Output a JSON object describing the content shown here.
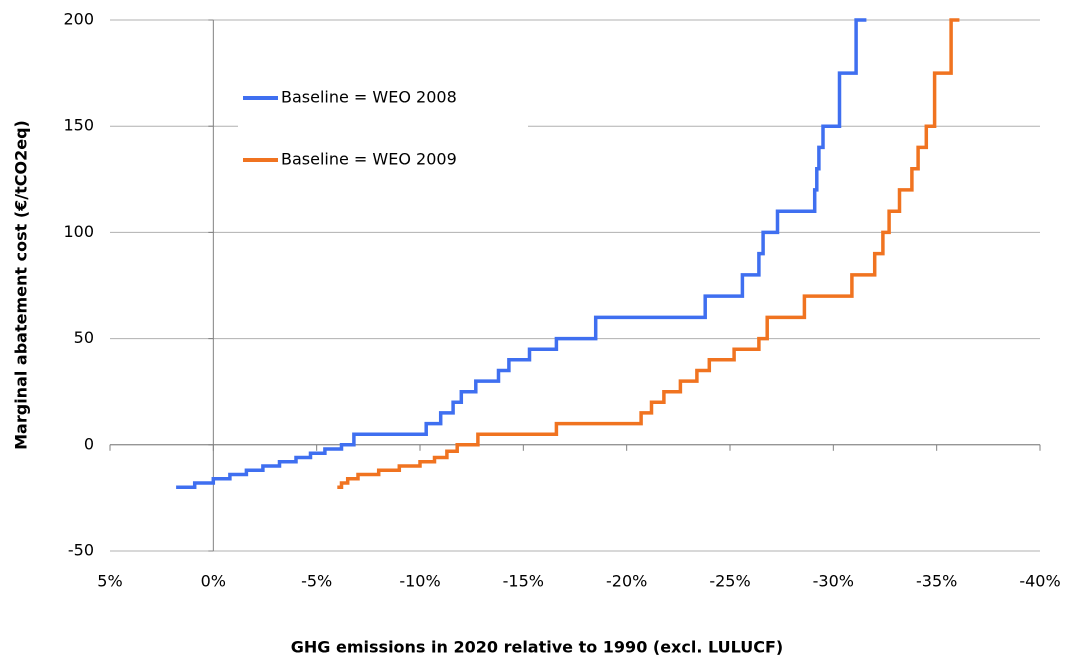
{
  "chart_data": {
    "type": "line",
    "step": true,
    "xlabel": "GHG emissions in 2020 relative to 1990 (excl. LULUCF)",
    "ylabel": "Marginal abatement cost (€/tCO2eq)",
    "xlim": [
      5,
      -40
    ],
    "ylim": [
      -50,
      200
    ],
    "xticks": [
      {
        "value": 5,
        "label": "5%"
      },
      {
        "value": 0,
        "label": "0%"
      },
      {
        "value": -5,
        "label": "-5%"
      },
      {
        "value": -10,
        "label": "-10%"
      },
      {
        "value": -15,
        "label": "-15%"
      },
      {
        "value": -20,
        "label": "-20%"
      },
      {
        "value": -25,
        "label": "-25%"
      },
      {
        "value": -30,
        "label": "-30%"
      },
      {
        "value": -35,
        "label": "-35%"
      },
      {
        "value": -40,
        "label": "-40%"
      }
    ],
    "yticks": [
      -50,
      0,
      50,
      100,
      150,
      200
    ],
    "grid": true,
    "legend": "upper left",
    "series": [
      {
        "name": "Baseline = WEO 2008",
        "color": "#3f6ff0",
        "x": [
          1.8,
          0.9,
          0.9,
          0,
          0,
          -0.8,
          -0.8,
          -1.6,
          -1.6,
          -2.4,
          -2.4,
          -3.2,
          -3.2,
          -4,
          -4,
          -4.7,
          -4.7,
          -5.4,
          -5.4,
          -6.2,
          -6.2,
          -6.8,
          -6.8,
          -10.3,
          -10.3,
          -11,
          -11,
          -11.6,
          -11.6,
          -12,
          -12,
          -12.7,
          -12.7,
          -13.8,
          -13.8,
          -14.3,
          -14.3,
          -15.3,
          -15.3,
          -16.6,
          -16.6,
          -18.5,
          -18.5,
          -23.8,
          -23.8,
          -25.6,
          -25.6,
          -26.4,
          -26.4,
          -26.6,
          -26.6,
          -27.3,
          -27.3,
          -29.1,
          -29.1,
          -29.2,
          -29.2,
          -29.3,
          -29.3,
          -29.5,
          -29.5,
          -30.3,
          -30.3,
          -31.1,
          -31.1,
          -31.6
        ],
        "values": [
          -20,
          -20,
          -18,
          -18,
          -16,
          -16,
          -14,
          -14,
          -12,
          -12,
          -10,
          -10,
          -8,
          -8,
          -6,
          -6,
          -4,
          -4,
          -2,
          -2,
          0,
          0,
          5,
          5,
          10,
          10,
          15,
          15,
          20,
          20,
          25,
          25,
          30,
          30,
          35,
          35,
          40,
          40,
          45,
          45,
          50,
          50,
          60,
          60,
          70,
          70,
          80,
          80,
          90,
          90,
          100,
          100,
          110,
          110,
          120,
          120,
          130,
          130,
          140,
          140,
          150,
          150,
          175,
          175,
          200,
          200
        ]
      },
      {
        "name": "Baseline = WEO 2009",
        "color": "#f07320",
        "x": [
          -6,
          -6.2,
          -6.2,
          -6.5,
          -6.5,
          -7,
          -7,
          -8,
          -8,
          -9,
          -9,
          -10,
          -10,
          -10.7,
          -10.7,
          -11.3,
          -11.3,
          -11.8,
          -11.8,
          -12.8,
          -12.8,
          -16.6,
          -16.6,
          -20.7,
          -20.7,
          -21.2,
          -21.2,
          -21.8,
          -21.8,
          -22.6,
          -22.6,
          -23.4,
          -23.4,
          -24,
          -24,
          -25.2,
          -25.2,
          -26.4,
          -26.4,
          -26.8,
          -26.8,
          -28.6,
          -28.6,
          -30.9,
          -30.9,
          -32,
          -32,
          -32.4,
          -32.4,
          -32.7,
          -32.7,
          -33.2,
          -33.2,
          -33.8,
          -33.8,
          -34.1,
          -34.1,
          -34.5,
          -34.5,
          -34.9,
          -34.9,
          -35.7,
          -35.7,
          -36.1
        ],
        "values": [
          -20,
          -20,
          -18,
          -18,
          -16,
          -16,
          -14,
          -14,
          -12,
          -12,
          -10,
          -10,
          -8,
          -8,
          -6,
          -6,
          -3,
          -3,
          0,
          0,
          5,
          5,
          10,
          10,
          15,
          15,
          20,
          20,
          25,
          25,
          30,
          30,
          35,
          35,
          40,
          40,
          45,
          45,
          50,
          50,
          60,
          60,
          70,
          70,
          80,
          80,
          90,
          90,
          100,
          100,
          110,
          110,
          120,
          120,
          130,
          130,
          140,
          140,
          150,
          150,
          175,
          175,
          200,
          200
        ]
      }
    ]
  }
}
